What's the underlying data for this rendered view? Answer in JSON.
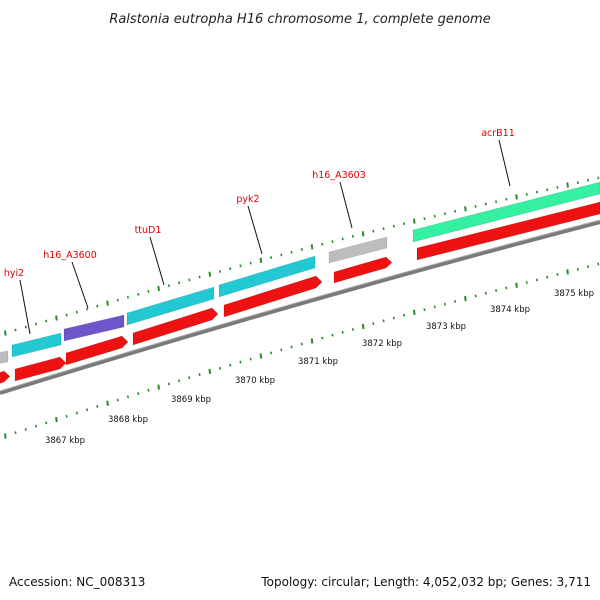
{
  "title": "Ralstonia eutropha H16 chromosome 1, complete genome",
  "footer": {
    "accession": "Accession: NC_008313",
    "summary": "Topology: circular; Length: 4,052,032 bp; Genes: 3,711"
  },
  "colors": {
    "gene_label": "#e00000",
    "cds_red": "#ee1111",
    "cyan": "#22c8d2",
    "purple": "#6f55cc",
    "gray": "#bdbdbd",
    "mint": "#35f0a0",
    "backbone": "#7a7a7a",
    "tick": "#2a8a2a"
  },
  "gene_labels": [
    {
      "id": "hyi2",
      "text": "hyi2"
    },
    {
      "id": "h16_a3600",
      "text": "h16_A3600"
    },
    {
      "id": "ttud1",
      "text": "ttuD1"
    },
    {
      "id": "pyk2",
      "text": "pyk2"
    },
    {
      "id": "h16_a3603",
      "text": "h16_A3603"
    },
    {
      "id": "acrb11",
      "text": "acrB11"
    }
  ],
  "kbp_labels": [
    "3867 kbp",
    "3868 kbp",
    "3869 kbp",
    "3870 kbp",
    "3871 kbp",
    "3872 kbp",
    "3873 kbp",
    "3874 kbp",
    "3875 kbp"
  ]
}
